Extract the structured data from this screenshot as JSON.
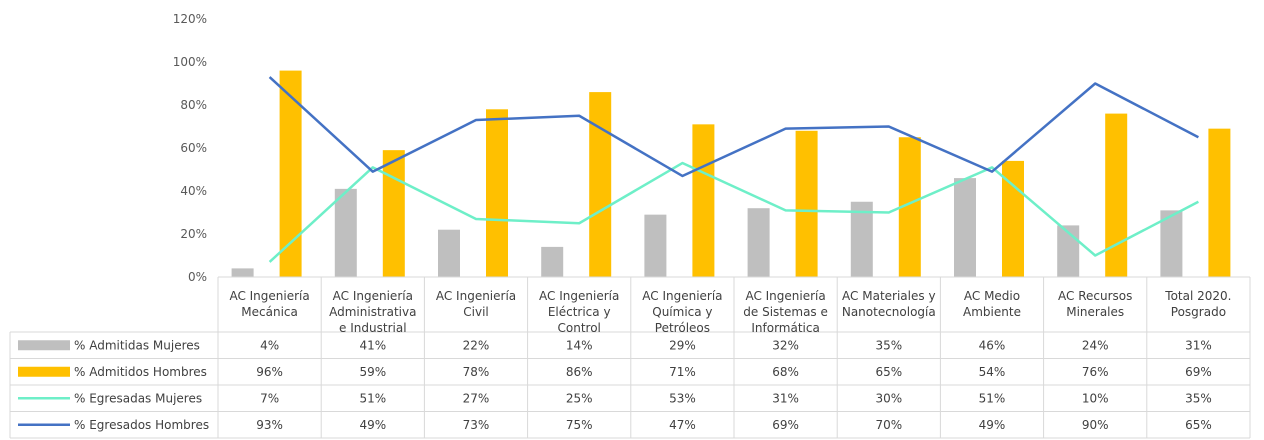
{
  "chart_data": {
    "type": "bar",
    "title": "",
    "xlabel": "",
    "ylabel": "",
    "ylim": [
      0,
      120
    ],
    "y_ticks": [
      "0%",
      "20%",
      "40%",
      "60%",
      "80%",
      "100%",
      "120%"
    ],
    "y_tick_values": [
      0,
      20,
      40,
      60,
      80,
      100,
      120
    ],
    "grid": false,
    "legend_placement": "data-table-left",
    "categories": [
      [
        "AC Ingeniería",
        "Mecánica"
      ],
      [
        "AC Ingeniería",
        "Administrativa",
        "e Industrial"
      ],
      [
        "AC Ingeniería",
        "Civil"
      ],
      [
        "AC Ingeniería",
        "Eléctrica y",
        "Control"
      ],
      [
        "AC Ingeniería",
        "Química y",
        "Petróleos"
      ],
      [
        "AC Ingeniería",
        "de Sistemas e",
        "Informática"
      ],
      [
        "AC Materiales y",
        "Nanotecnología"
      ],
      [
        "AC Medio",
        "Ambiente"
      ],
      [
        "AC Recursos",
        "Minerales"
      ],
      [
        "Total 2020.",
        "Posgrado"
      ]
    ],
    "series": [
      {
        "name": "% Admitidas Mujeres",
        "kind": "bar",
        "color": "#BFBFBF",
        "values": [
          4,
          41,
          22,
          14,
          29,
          32,
          35,
          46,
          24,
          31
        ],
        "labels": [
          "4%",
          "41%",
          "22%",
          "14%",
          "29%",
          "32%",
          "35%",
          "46%",
          "24%",
          "31%"
        ]
      },
      {
        "name": "% Admitidos Hombres",
        "kind": "bar",
        "color": "#FFC000",
        "values": [
          96,
          59,
          78,
          86,
          71,
          68,
          65,
          54,
          76,
          69
        ],
        "labels": [
          "96%",
          "59%",
          "78%",
          "86%",
          "71%",
          "68%",
          "65%",
          "54%",
          "76%",
          "69%"
        ]
      },
      {
        "name": "% Egresadas Mujeres",
        "kind": "line",
        "color": "#6EEFC8",
        "values": [
          7,
          51,
          27,
          25,
          53,
          31,
          30,
          51,
          10,
          35
        ],
        "labels": [
          "7%",
          "51%",
          "27%",
          "25%",
          "53%",
          "31%",
          "30%",
          "51%",
          "10%",
          "35%"
        ]
      },
      {
        "name": "% Egresados Hombres",
        "kind": "line",
        "color": "#4472C4",
        "values": [
          93,
          49,
          73,
          75,
          47,
          69,
          70,
          49,
          90,
          65
        ],
        "labels": [
          "93%",
          "49%",
          "73%",
          "75%",
          "47%",
          "69%",
          "70%",
          "49%",
          "90%",
          "65%"
        ]
      }
    ]
  }
}
